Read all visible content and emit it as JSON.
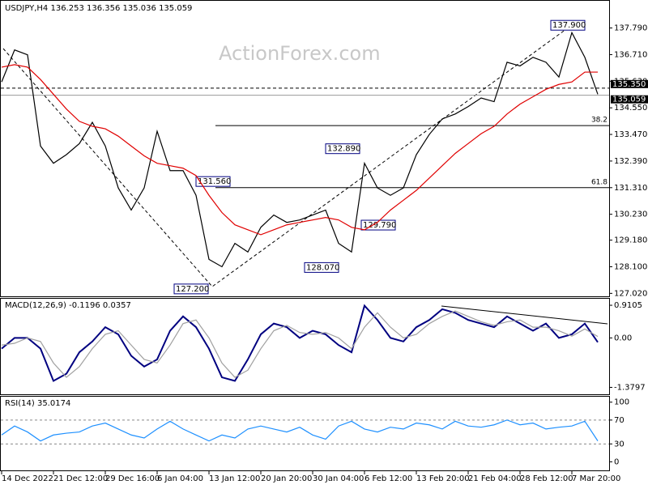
{
  "header": "USDJPY,H4  136.253 136.356 135.036 135.059",
  "watermark": "ActionForex.com",
  "chart_data": [
    {
      "type": "line",
      "ylim": [
        126.9,
        138.86
      ],
      "yticks": [
        {
          "value": 127.02,
          "label": "127.020"
        },
        {
          "value": 128.1,
          "label": "128.100"
        },
        {
          "value": 129.18,
          "label": "129.180"
        },
        {
          "value": 130.23,
          "label": "130.230"
        },
        {
          "value": 131.31,
          "label": "131.310"
        },
        {
          "value": 132.39,
          "label": "132.390"
        },
        {
          "value": 133.47,
          "label": "133.470"
        },
        {
          "value": 134.55,
          "label": "134.550"
        },
        {
          "value": 135.63,
          "label": "135.630"
        },
        {
          "value": 136.71,
          "label": "136.710"
        },
        {
          "value": 137.79,
          "label": "137.790"
        }
      ],
      "categories": [
        "14 Dec 2022",
        null,
        null,
        null,
        "21 Dec 12:00",
        null,
        null,
        null,
        "29 Dec 16:00",
        null,
        null,
        null,
        "6 Jan 04:00",
        null,
        null,
        null,
        "13 Jan 12:00",
        null,
        null,
        null,
        "20 Jan 20:00",
        null,
        null,
        null,
        "30 Jan 04:00",
        null,
        null,
        null,
        "6 Feb 12:00",
        null,
        null,
        null,
        "13 Feb 20:00",
        null,
        null,
        null,
        "21 Feb 04:00",
        null,
        null,
        null,
        "28 Feb 12:00",
        null,
        null,
        null,
        "7 Mar 20:00",
        null,
        null
      ],
      "series": [
        {
          "color": "#000000",
          "values": [
            135.6,
            136.9,
            136.7,
            133.0,
            132.3,
            132.65,
            133.1,
            133.96,
            133.0,
            131.3,
            130.4,
            131.3,
            133.6,
            132.0,
            132.0,
            131.0,
            128.4,
            128.1,
            129.05,
            128.7,
            129.7,
            130.2,
            129.9,
            130.0,
            130.2,
            130.4,
            129.05,
            128.7,
            132.3,
            131.3,
            131.0,
            131.3,
            132.65,
            133.47,
            134.1,
            134.3,
            134.6,
            134.95,
            134.8,
            136.4,
            136.25,
            136.6,
            136.4,
            135.8,
            137.6,
            136.6,
            135.1
          ]
        },
        {
          "color": "#e00000",
          "values": [
            136.2,
            136.3,
            136.2,
            135.7,
            135.1,
            134.5,
            134.0,
            133.8,
            133.7,
            133.4,
            133.0,
            132.6,
            132.3,
            132.2,
            132.1,
            131.8,
            131.0,
            130.3,
            129.8,
            129.6,
            129.4,
            129.6,
            129.8,
            129.9,
            130.0,
            130.1,
            130.0,
            129.7,
            129.6,
            129.9,
            130.4,
            130.8,
            131.2,
            131.7,
            132.2,
            132.7,
            133.1,
            133.5,
            133.8,
            134.3,
            134.7,
            135.0,
            135.3,
            135.5,
            135.6,
            136.0,
            136.0
          ]
        }
      ],
      "price_lines": [
        {
          "value": 135.35,
          "label": "135.350",
          "style": "dashed"
        },
        {
          "value": 135.059,
          "label": "135.059",
          "style": "solid"
        }
      ],
      "fib_levels": [
        {
          "value": 133.83,
          "label": "38.2"
        },
        {
          "value": 131.31,
          "label": "61.8"
        }
      ],
      "annotations": [
        {
          "value": 137.9,
          "label": "137.900"
        },
        {
          "value": 132.89,
          "label": "132.890"
        },
        {
          "value": 131.56,
          "label": "131.560"
        },
        {
          "value": 129.79,
          "label": "129.790"
        },
        {
          "value": 128.07,
          "label": "128.070"
        },
        {
          "value": 127.2,
          "label": "127.200"
        }
      ]
    },
    {
      "type": "line",
      "title": "MACD(12,26,9) -0.1196 0.0357",
      "ylim": [
        -1.55,
        1.07
      ],
      "yticks": [
        0.9105,
        {
          "value": 0,
          "label": "0.00"
        },
        -1.3797
      ],
      "series": [
        {
          "color": "#000080",
          "values": [
            -0.3,
            0,
            0,
            -0.3,
            -1.2,
            -1.0,
            -0.4,
            -0.1,
            0.3,
            0.1,
            -0.5,
            -0.8,
            -0.6,
            0.2,
            0.6,
            0.3,
            -0.3,
            -1.1,
            -1.2,
            -0.6,
            0.1,
            0.4,
            0.3,
            0,
            0.2,
            0.1,
            -0.2,
            -0.4,
            0.9,
            0.5,
            0,
            -0.1,
            0.3,
            0.5,
            0.8,
            0.7,
            0.5,
            0.4,
            0.3,
            0.6,
            0.4,
            0.2,
            0.4,
            0,
            0.1,
            0.4,
            -0.12
          ]
        },
        {
          "color": "#a0a0a0",
          "values": [
            -0.2,
            -0.15,
            0,
            -0.1,
            -0.7,
            -1.1,
            -0.8,
            -0.3,
            0.1,
            0.2,
            -0.2,
            -0.6,
            -0.7,
            -0.2,
            0.4,
            0.5,
            0,
            -0.7,
            -1.1,
            -0.9,
            -0.3,
            0.2,
            0.35,
            0.15,
            0.1,
            0.15,
            0,
            -0.3,
            0.3,
            0.7,
            0.3,
            0,
            0.1,
            0.4,
            0.6,
            0.75,
            0.6,
            0.45,
            0.35,
            0.45,
            0.5,
            0.3,
            0.3,
            0.2,
            0.05,
            0.25,
            0.04
          ]
        }
      ]
    },
    {
      "type": "line",
      "title": "RSI(14) 35.0174",
      "ylim": [
        -13,
        107.8
      ],
      "yticks": [
        0,
        30,
        70,
        100
      ],
      "levels": [
        30,
        70
      ],
      "series": [
        {
          "color": "#1e90ff",
          "values": [
            45,
            60,
            50,
            35,
            45,
            48,
            50,
            60,
            65,
            55,
            45,
            40,
            55,
            68,
            55,
            45,
            35,
            45,
            40,
            55,
            60,
            55,
            50,
            58,
            45,
            38,
            60,
            68,
            55,
            50,
            58,
            55,
            65,
            62,
            55,
            68,
            60,
            58,
            62,
            70,
            62,
            65,
            55,
            58,
            60,
            68,
            35
          ]
        }
      ]
    }
  ]
}
